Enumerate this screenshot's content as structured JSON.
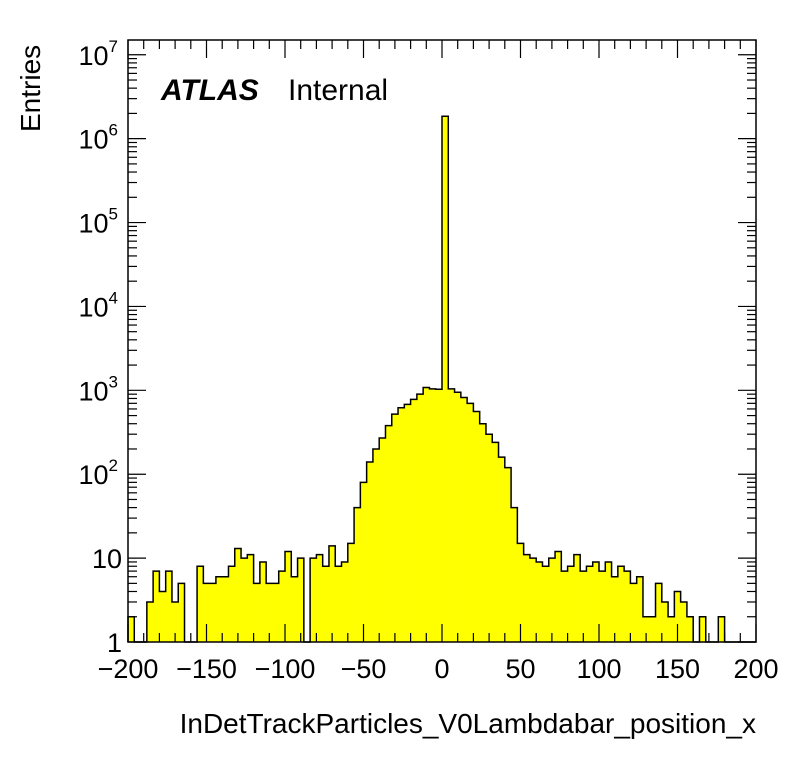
{
  "chart_data": {
    "type": "bar",
    "histogram": true,
    "ylabel": "Entries",
    "xlabel": "InDetTrackParticles_V0Lambdabar_position_x",
    "experiment_label": "ATLAS",
    "status_label": "Internal",
    "fill_color": "#ffff00",
    "line_color": "#000000",
    "log_y": true,
    "xlim": [
      -200,
      200
    ],
    "ylim": [
      1,
      15000000
    ],
    "bin_width": 4,
    "x_ticks": [
      {
        "value": -200,
        "label": "−200"
      },
      {
        "value": -150,
        "label": "−150"
      },
      {
        "value": -100,
        "label": "−100"
      },
      {
        "value": -50,
        "label": "−50"
      },
      {
        "value": 0,
        "label": "0"
      },
      {
        "value": 50,
        "label": "50"
      },
      {
        "value": 100,
        "label": "100"
      },
      {
        "value": 150,
        "label": "150"
      },
      {
        "value": 200,
        "label": "200"
      }
    ],
    "y_ticks": [
      {
        "value": 1,
        "base": "1",
        "exp": ""
      },
      {
        "value": 10,
        "base": "10",
        "exp": ""
      },
      {
        "value": 100,
        "base": "10",
        "exp": "2"
      },
      {
        "value": 1000,
        "base": "10",
        "exp": "3"
      },
      {
        "value": 10000,
        "base": "10",
        "exp": "4"
      },
      {
        "value": 100000,
        "base": "10",
        "exp": "5"
      },
      {
        "value": 1000000,
        "base": "10",
        "exp": "6"
      },
      {
        "value": 10000000,
        "base": "10",
        "exp": "7"
      }
    ],
    "bin_edges_start": -200,
    "values": [
      2,
      1,
      0,
      3,
      7,
      4,
      7,
      3,
      5,
      0,
      1,
      8,
      5,
      5,
      6,
      6,
      8,
      13,
      10,
      11,
      5,
      9,
      5,
      5,
      7,
      12,
      6,
      10,
      0,
      10,
      11,
      8,
      14,
      8,
      9,
      15,
      40,
      80,
      140,
      200,
      270,
      380,
      520,
      620,
      680,
      780,
      900,
      1080,
      1040,
      1030,
      1850000,
      1040,
      950,
      820,
      700,
      560,
      400,
      300,
      240,
      160,
      120,
      40,
      15,
      11,
      10,
      9,
      8,
      10,
      12,
      7,
      8,
      11,
      7,
      8,
      9,
      7,
      9,
      6,
      8,
      7,
      5,
      6,
      2,
      2,
      5,
      3,
      2,
      4,
      3,
      2,
      1,
      2,
      1,
      1,
      2,
      1,
      1,
      1,
      1,
      1
    ]
  }
}
